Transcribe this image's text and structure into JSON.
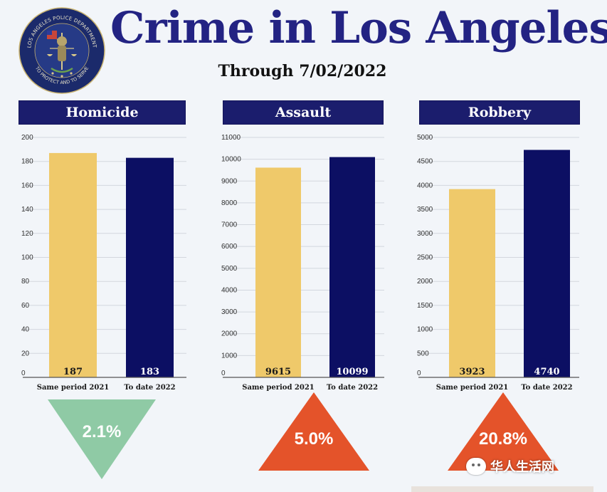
{
  "title": "Crime in Los Angeles",
  "subtitle": "Through 7/02/2022",
  "badge": {
    "text_top": "LOS ANGELES POLICE DEPARTMENT",
    "text_bottom": "TO PROTECT AND TO SERVE"
  },
  "colors": {
    "navy": "#0c0f63",
    "gold": "#efc96a",
    "header": "#1b1d6d",
    "title": "#232383",
    "down": "#8fcaa5",
    "up": "#e4532a"
  },
  "chart_data": [
    {
      "type": "bar",
      "title": "Homicide",
      "categories": [
        "Same period 2021",
        "To date 2022"
      ],
      "values": [
        187,
        183
      ],
      "value_labels": [
        "187",
        "183"
      ],
      "ylim": [
        0,
        200
      ],
      "yticks": [
        "0",
        "20",
        "40",
        "60",
        "80",
        "100",
        "120",
        "140",
        "160",
        "180",
        "200"
      ],
      "change": "2.1%",
      "direction": "down",
      "grid": true
    },
    {
      "type": "bar",
      "title": "Assault",
      "categories": [
        "Same period 2021",
        "To date 2022"
      ],
      "values": [
        9615,
        10099
      ],
      "value_labels": [
        "9615",
        "10099"
      ],
      "ylim": [
        0,
        11000
      ],
      "yticks": [
        "0",
        "1000",
        "2000",
        "3000",
        "4000",
        "5000",
        "6000",
        "7000",
        "8000",
        "9000",
        "10000",
        "11000"
      ],
      "change": "5.0%",
      "direction": "up",
      "grid": true
    },
    {
      "type": "bar",
      "title": "Robbery",
      "categories": [
        "Same period 2021",
        "To date 2022"
      ],
      "values": [
        3923,
        4740
      ],
      "value_labels": [
        "3923",
        "4740"
      ],
      "ylim": [
        0,
        5000
      ],
      "yticks": [
        "0",
        "500",
        "1000",
        "1500",
        "2000",
        "2500",
        "3000",
        "3500",
        "4000",
        "4500",
        "5000"
      ],
      "change": "20.8%",
      "direction": "up",
      "grid": true
    }
  ],
  "watermark": "华人生活网"
}
